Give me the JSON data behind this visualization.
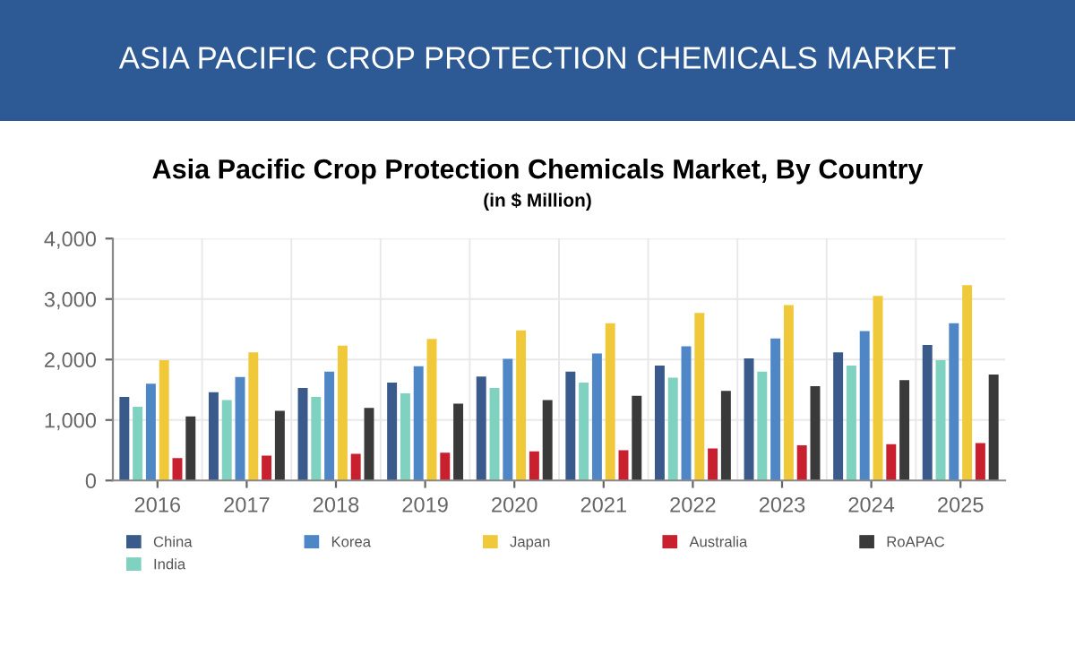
{
  "chart_data": {
    "type": "bar",
    "title": "ASIA PACIFIC CROP PROTECTION CHEMICALS MARKET",
    "subtitle": "Asia Pacific Crop Protection Chemicals Market, By Country",
    "annotations": [
      "(in $ Million)"
    ],
    "categories": [
      "2016",
      "2017",
      "2018",
      "2019",
      "2020",
      "2021",
      "2022",
      "2023",
      "2024",
      "2025"
    ],
    "series": [
      {
        "name": "China",
        "color": "#3b5a8c",
        "values": [
          1380,
          1460,
          1530,
          1620,
          1720,
          1800,
          1900,
          2020,
          2120,
          2240
        ]
      },
      {
        "name": "India",
        "color": "#7fd1c0",
        "values": [
          1220,
          1330,
          1380,
          1440,
          1530,
          1620,
          1700,
          1800,
          1900,
          1990
        ]
      },
      {
        "name": "Korea",
        "color": "#4f86c6",
        "values": [
          1600,
          1710,
          1800,
          1890,
          2010,
          2100,
          2220,
          2350,
          2470,
          2600
        ]
      },
      {
        "name": "Japan",
        "color": "#f0c93a",
        "values": [
          1990,
          2120,
          2230,
          2340,
          2480,
          2600,
          2770,
          2900,
          3050,
          3230
        ]
      },
      {
        "name": "Australia",
        "color": "#c8202f",
        "values": [
          370,
          410,
          440,
          460,
          480,
          500,
          530,
          580,
          600,
          620
        ]
      },
      {
        "name": "RoAPAC",
        "color": "#3a3a3a",
        "values": [
          1060,
          1150,
          1200,
          1270,
          1330,
          1400,
          1480,
          1560,
          1660,
          1750
        ]
      }
    ],
    "ylim": [
      0,
      4000
    ],
    "yticks": [
      {
        "value": 0,
        "label": "0"
      },
      {
        "value": 1000,
        "label": "1,000"
      },
      {
        "value": 2000,
        "label": "2,000"
      },
      {
        "value": 3000,
        "label": "3,000"
      },
      {
        "value": 4000,
        "label": "4,000"
      }
    ],
    "grid": true,
    "legend": "bottom"
  }
}
